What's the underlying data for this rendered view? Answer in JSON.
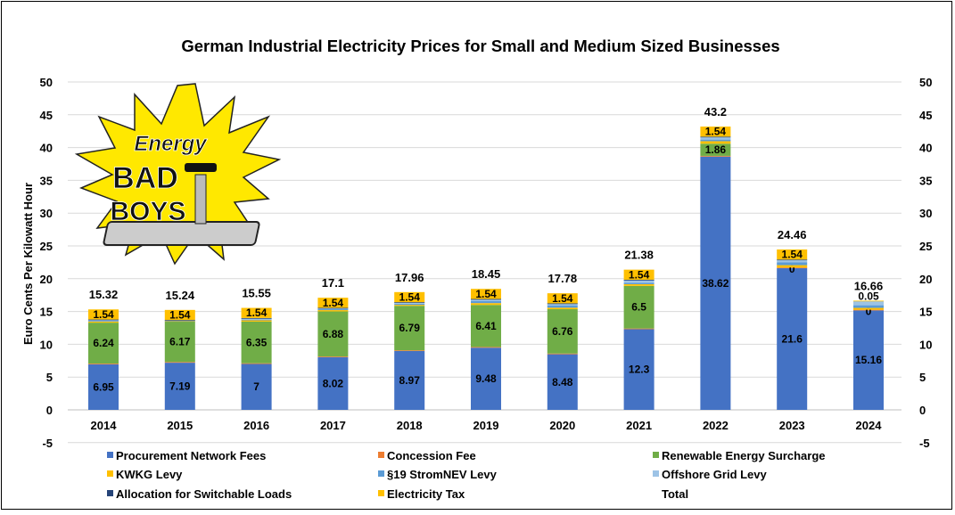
{
  "chart_data": {
    "type": "bar",
    "stacked": true,
    "title": "German Industrial Electricity Prices for Small and Medium Sized Businesses",
    "ylabel": "Euro Cents Per Kilowatt Hour",
    "xlabel": "",
    "ylim": [
      -5,
      50
    ],
    "yticks": [
      -5,
      0,
      5,
      10,
      15,
      20,
      25,
      30,
      35,
      40,
      45,
      50
    ],
    "grid": true,
    "legend_position": "bottom",
    "categories": [
      "2014",
      "2015",
      "2016",
      "2017",
      "2018",
      "2019",
      "2020",
      "2021",
      "2022",
      "2023",
      "2024"
    ],
    "series": [
      {
        "name": "Procurement Network Fees",
        "color": "#4472C4",
        "labeled": true,
        "values": [
          6.95,
          7.19,
          7,
          8.02,
          8.97,
          9.48,
          8.48,
          12.3,
          38.62,
          21.6,
          15.16
        ]
      },
      {
        "name": "Concession Fee",
        "color": "#ED7D31",
        "labeled": false,
        "values": [
          0.11,
          0.11,
          0.11,
          0.11,
          0.11,
          0.11,
          0.11,
          0.11,
          0.11,
          0.11,
          0.11
        ]
      },
      {
        "name": "Renewable Energy Surcharge",
        "color": "#70AD47",
        "labeled": true,
        "values": [
          6.24,
          6.17,
          6.35,
          6.88,
          6.79,
          6.41,
          6.76,
          6.5,
          1.86,
          0,
          0
        ]
      },
      {
        "name": "KWKG Levy",
        "color": "#FFC000",
        "labeled": false,
        "values": [
          0.18,
          0.08,
          0.2,
          0.2,
          0.15,
          0.28,
          0.23,
          0.25,
          0.38,
          0.36,
          0.28
        ]
      },
      {
        "name": "§19 StromNEV Levy",
        "color": "#5B9BD5",
        "labeled": false,
        "values": [
          0.09,
          0.07,
          0.1,
          0.14,
          0.17,
          0.31,
          0.36,
          0.22,
          0.25,
          0.42,
          0.4
        ]
      },
      {
        "name": "Offshore Grid Levy",
        "color": "#9DC3E6",
        "labeled": false,
        "values": [
          0.2,
          0.07,
          0.24,
          0.2,
          0.22,
          0.31,
          0.29,
          0.45,
          0.43,
          0.42,
          0.65
        ]
      },
      {
        "name": "Allocation for Switchable Loads",
        "color": "#264478",
        "labeled": false,
        "values": [
          0.01,
          0.01,
          0.01,
          0.01,
          0.01,
          0.01,
          0.01,
          0.01,
          0.01,
          0.01,
          0
        ]
      },
      {
        "name": "Electricity Tax",
        "color": "#FFC000",
        "labeled": true,
        "values": [
          1.54,
          1.54,
          1.54,
          1.54,
          1.54,
          1.54,
          1.54,
          1.54,
          1.54,
          1.54,
          0.05
        ]
      },
      {
        "name": "Total",
        "color": "none",
        "labeled": true,
        "values": [
          15.32,
          15.24,
          15.55,
          17.1,
          17.96,
          18.45,
          17.78,
          21.38,
          43.2,
          24.46,
          16.66
        ]
      }
    ]
  },
  "logo": {
    "line1": "Energy",
    "line2": "BAD",
    "line3": "BOYS"
  }
}
